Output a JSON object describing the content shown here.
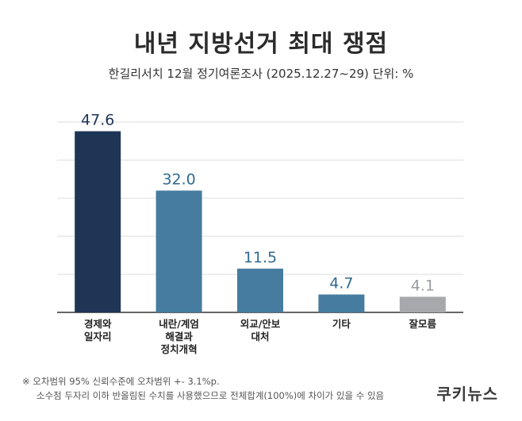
{
  "header": {
    "title": "내년 지방선거 최대 쟁점",
    "subtitle": "한길리서치 12월 정기여론조사 (2025.12.27~29) 단위: %"
  },
  "chart_data": {
    "type": "bar",
    "categories": [
      [
        "경제와",
        "일자리"
      ],
      [
        "내란/계엄",
        "해결과",
        "정치개혁"
      ],
      [
        "외교/안보",
        "대처"
      ],
      [
        "기타"
      ],
      [
        "잘모름"
      ]
    ],
    "values": [
      47.6,
      32.0,
      11.5,
      4.7,
      4.1
    ],
    "value_labels": [
      "47.6",
      "32.0",
      "11.5",
      "4.7",
      "4.1"
    ],
    "bar_colors": [
      "#1e3556",
      "#467c9f",
      "#467c9f",
      "#467c9f",
      "#a6a8ab"
    ],
    "label_colors": [
      "#1e3556",
      "#2f6a92",
      "#2f6a92",
      "#2f6a92",
      "#9a9c9f"
    ],
    "ylim": [
      0,
      50
    ],
    "grid": true
  },
  "footnote": {
    "line1": "※ 오차범위 95% 신뢰수준에 오차범위 +- 3.1%p.",
    "line2": "소수점 두자리 이하 반올림된 수치를 사용했으므로 전체합계(100%)에 차이가 있을 수 있음"
  },
  "logo": {
    "text": "쿠키뉴스"
  }
}
